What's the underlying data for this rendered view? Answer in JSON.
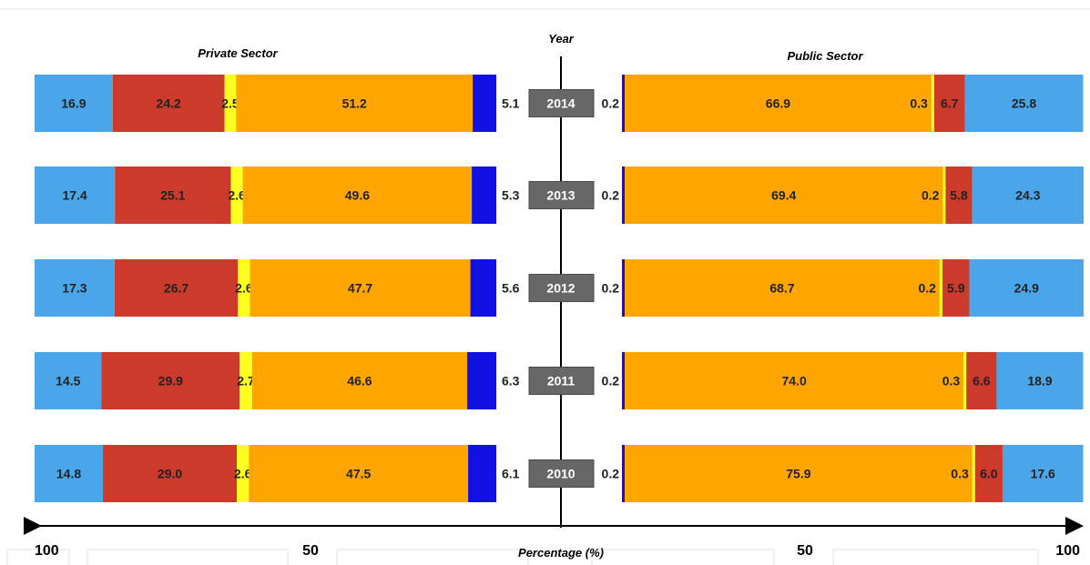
{
  "chart_data": {
    "type": "bar",
    "orientation": "horizontal-stacked-butterfly",
    "y_title": "Year",
    "x_title": "Percentage (%)",
    "x_ticks": [
      "100",
      "50",
      "50",
      "100"
    ],
    "left_title": "Private Sector",
    "right_title": "Public Sector",
    "colors": [
      "#4aa6e8",
      "#cc3a2c",
      "#ffff20",
      "#ffa500",
      "#1010e0"
    ],
    "categories": [
      "2014",
      "2013",
      "2012",
      "2011",
      "2010"
    ],
    "private": [
      [
        16.9,
        24.2,
        2.5,
        51.2,
        5.1
      ],
      [
        17.4,
        25.1,
        2.6,
        49.6,
        5.3
      ],
      [
        17.3,
        26.7,
        2.6,
        47.7,
        5.6
      ],
      [
        14.5,
        29.9,
        2.7,
        46.6,
        6.3
      ],
      [
        14.8,
        29.0,
        2.6,
        47.5,
        6.1
      ]
    ],
    "private_labels": [
      [
        "16.9",
        "24.2",
        "2.5",
        "51.2",
        "5.1"
      ],
      [
        "17.4",
        "25.1",
        "2.6",
        "49.6",
        "5.3"
      ],
      [
        "17.3",
        "26.7",
        "2.6",
        "47.7",
        "5.6"
      ],
      [
        "14.5",
        "29.9",
        "2.7",
        "46.6",
        "6.3"
      ],
      [
        "14.8",
        "29.0",
        "2.6",
        "47.5",
        "6.1"
      ]
    ],
    "public": [
      [
        0.2,
        66.9,
        0.3,
        6.7,
        25.8
      ],
      [
        0.2,
        69.4,
        0.2,
        5.8,
        24.3
      ],
      [
        0.2,
        68.7,
        0.2,
        5.9,
        24.9
      ],
      [
        0.2,
        74.0,
        0.3,
        6.6,
        18.9
      ],
      [
        0.2,
        75.9,
        0.3,
        6.0,
        17.6
      ]
    ],
    "public_labels": [
      [
        "0.2",
        "66.9",
        "0.3",
        "6.7",
        "25.8"
      ],
      [
        "0.2",
        "69.4",
        "0.2",
        "5.8",
        "24.3"
      ],
      [
        "0.2",
        "68.7",
        "0.2",
        "5.9",
        "24.9"
      ],
      [
        "0.2",
        "74.0",
        "0.3",
        "6.6",
        "18.9"
      ],
      [
        "0.2",
        "75.9",
        "0.3",
        "6.0",
        "17.6"
      ]
    ],
    "public_colors": [
      "#1010e0",
      "#ffa500",
      "#ffff20",
      "#cc3a2c",
      "#4aa6e8"
    ]
  }
}
